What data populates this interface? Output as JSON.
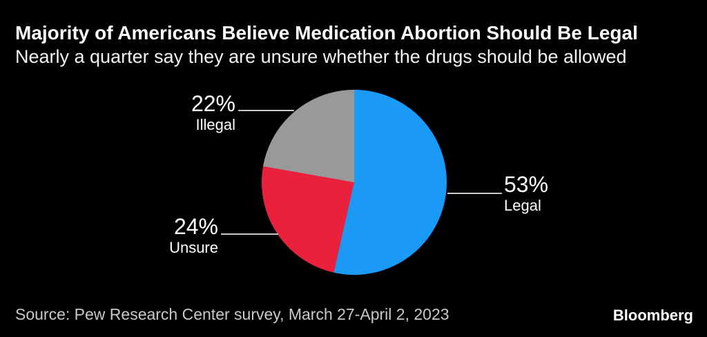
{
  "header": {
    "title": "Majority of Americans Believe Medication Abortion Should Be Legal",
    "subtitle": "Nearly a quarter say they are unsure whether the drugs should be allowed"
  },
  "chart_data": {
    "type": "pie",
    "title": "Majority of Americans Believe Medication Abortion Should Be Legal",
    "subtitle": "Nearly a quarter say they are unsure whether the drugs should be allowed",
    "unit": "%",
    "start_angle_deg": 0,
    "direction": "clockwise",
    "legend_position": "callout-labels",
    "slices": [
      {
        "label": "Legal",
        "value": 53,
        "display": "53%",
        "color": "#1B9AF5"
      },
      {
        "label": "Unsure",
        "value": 24,
        "display": "24%",
        "color": "#E9213C"
      },
      {
        "label": "Illegal",
        "value": 22,
        "display": "22%",
        "color": "#999999"
      }
    ],
    "source": "Source: Pew Research Center survey, March 27-April 2, 2023"
  },
  "footer": {
    "source": "Source: Pew Research Center survey, March 27-April 2, 2023",
    "brand": "Bloomberg"
  },
  "colors": {
    "background": "#000000",
    "title_text": "#FFFFFF",
    "subtitle_text": "#F2F2F2",
    "label_text": "#FFFFFF",
    "muted_text": "#C9C9C9",
    "leader_line": "#C9C9C9",
    "slice_legal": "#1B9AF5",
    "slice_unsure": "#E9213C",
    "slice_illegal": "#999999"
  }
}
